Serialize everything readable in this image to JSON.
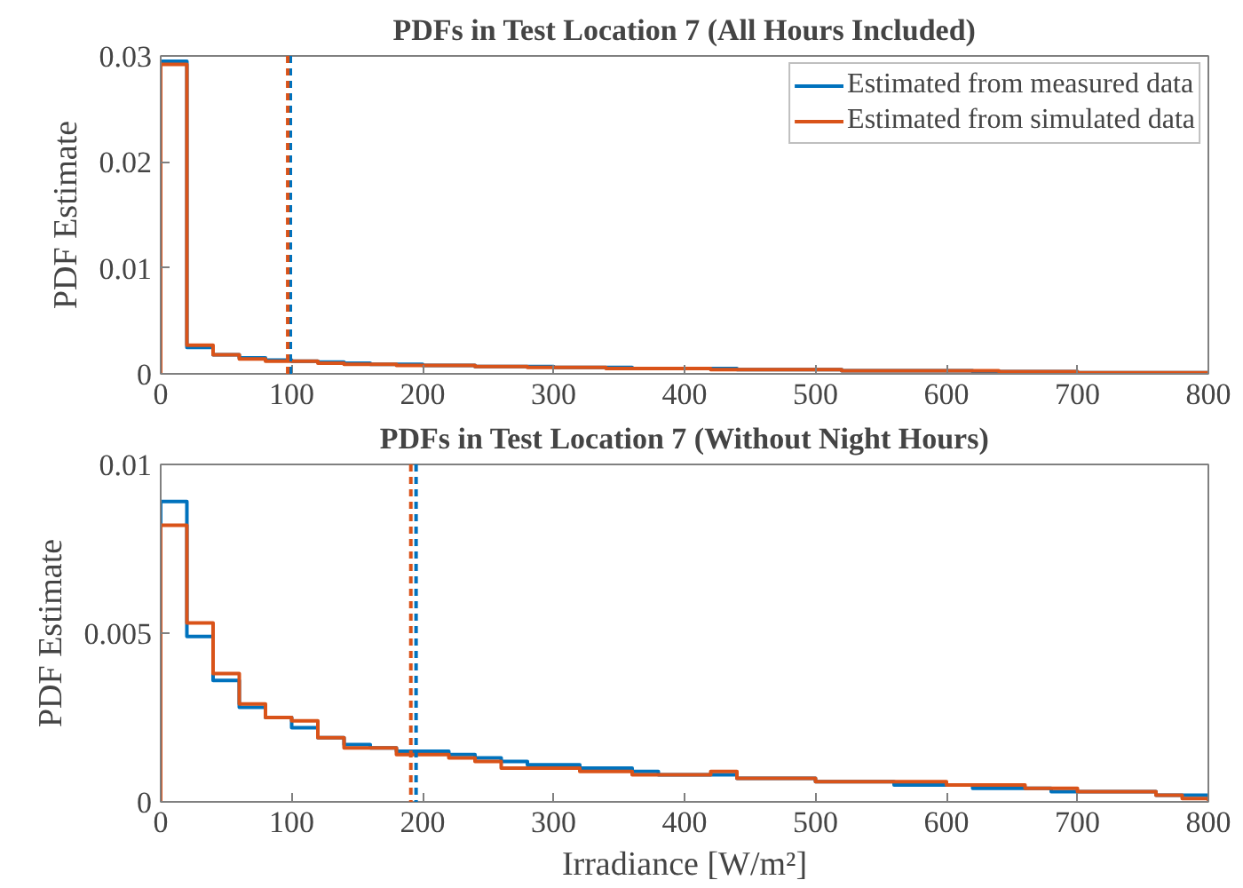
{
  "chart_data": [
    {
      "type": "histogram",
      "title": "PDFs in Test Location 7 (All Hours Included)",
      "ylabel": "PDF Estimate",
      "bins": [
        0,
        20,
        40,
        60,
        80,
        100,
        120,
        140,
        160,
        180,
        200,
        220,
        240,
        260,
        280,
        300,
        320,
        340,
        360,
        380,
        400,
        420,
        440,
        460,
        480,
        500,
        520,
        540,
        560,
        580,
        600,
        620,
        640,
        660,
        680,
        700,
        720,
        740,
        760,
        780,
        800
      ],
      "series": [
        {
          "name": "Estimated from measured data",
          "color": "#0072bd",
          "values": [
            0.0295,
            0.0025,
            0.0018,
            0.0015,
            0.0013,
            0.0012,
            0.0011,
            0.001,
            0.0009,
            0.0009,
            0.0008,
            0.0008,
            0.0007,
            0.0007,
            0.0007,
            0.0006,
            0.0006,
            0.0006,
            0.0005,
            0.0005,
            0.0005,
            0.0005,
            0.0004,
            0.0004,
            0.0004,
            0.0004,
            0.0003,
            0.0003,
            0.0003,
            0.0003,
            0.0003,
            0.0002,
            0.0002,
            0.0002,
            0.0002,
            0.0001,
            0.0001,
            0.0001,
            0.0001,
            0.0001
          ]
        },
        {
          "name": "Estimated from simulated data",
          "color": "#d95319",
          "values": [
            0.0292,
            0.0027,
            0.0018,
            0.0014,
            0.0012,
            0.0012,
            0.001,
            0.0009,
            0.0009,
            0.0008,
            0.0008,
            0.0008,
            0.0007,
            0.0007,
            0.0006,
            0.0006,
            0.0006,
            0.0005,
            0.0005,
            0.0005,
            0.0005,
            0.0004,
            0.0004,
            0.0004,
            0.0004,
            0.0004,
            0.0003,
            0.0003,
            0.0003,
            0.0003,
            0.0003,
            0.0003,
            0.0002,
            0.0002,
            0.0002,
            0.0001,
            0.0001,
            0.0001,
            0.0001,
            0.0001
          ]
        }
      ],
      "ref_lines": [
        {
          "axis": "x",
          "value": 99,
          "color": "#0072bd",
          "line_style": "dashed"
        },
        {
          "axis": "x",
          "value": 97,
          "color": "#d95319",
          "line_style": "dashed"
        }
      ],
      "xlim": [
        0,
        800
      ],
      "xticks": [
        0,
        100,
        200,
        300,
        400,
        500,
        600,
        700,
        800
      ],
      "ylim": [
        0,
        0.03
      ],
      "yticks": [
        0,
        0.01,
        0.02,
        0.03
      ],
      "grid": false,
      "legend": "top right"
    },
    {
      "type": "histogram",
      "title": "PDFs in Test Location 7 (Without Night Hours)",
      "ylabel": "PDF Estimate",
      "xlabel": "Irradiance [W/m²]",
      "bins": [
        0,
        20,
        40,
        60,
        80,
        100,
        120,
        140,
        160,
        180,
        200,
        220,
        240,
        260,
        280,
        300,
        320,
        340,
        360,
        380,
        400,
        420,
        440,
        460,
        480,
        500,
        520,
        540,
        560,
        580,
        600,
        620,
        640,
        660,
        680,
        700,
        720,
        740,
        760,
        780,
        800
      ],
      "series": [
        {
          "color": "#0072bd",
          "values": [
            0.0089,
            0.0049,
            0.0036,
            0.0028,
            0.0025,
            0.0022,
            0.0019,
            0.0017,
            0.0016,
            0.0015,
            0.0015,
            0.0014,
            0.0013,
            0.0012,
            0.0011,
            0.0011,
            0.001,
            0.001,
            0.0009,
            0.0008,
            0.0008,
            0.0008,
            0.0007,
            0.0007,
            0.0007,
            0.0006,
            0.0006,
            0.0006,
            0.0005,
            0.0005,
            0.0005,
            0.0004,
            0.0004,
            0.0004,
            0.0003,
            0.0003,
            0.0003,
            0.0003,
            0.0002,
            0.0002
          ]
        },
        {
          "color": "#d95319",
          "values": [
            0.0082,
            0.0053,
            0.0038,
            0.0029,
            0.0025,
            0.0024,
            0.0019,
            0.0016,
            0.0016,
            0.0014,
            0.0014,
            0.0013,
            0.0012,
            0.001,
            0.001,
            0.001,
            0.0009,
            0.0009,
            0.0008,
            0.0008,
            0.0008,
            0.0009,
            0.0007,
            0.0007,
            0.0007,
            0.0006,
            0.0006,
            0.0006,
            0.0006,
            0.0006,
            0.0005,
            0.0005,
            0.0005,
            0.0004,
            0.0004,
            0.0003,
            0.0003,
            0.0003,
            0.0002,
            0.0001
          ]
        }
      ],
      "ref_lines": [
        {
          "axis": "x",
          "value": 195,
          "color": "#0072bd",
          "line_style": "dashed"
        },
        {
          "axis": "x",
          "value": 191,
          "color": "#d95319",
          "line_style": "dashed"
        }
      ],
      "xlim": [
        0,
        800
      ],
      "xticks": [
        0,
        100,
        200,
        300,
        400,
        500,
        600,
        700,
        800
      ],
      "ylim": [
        0,
        0.01
      ],
      "yticks": [
        0,
        0.005,
        0.01
      ],
      "grid": false
    }
  ]
}
